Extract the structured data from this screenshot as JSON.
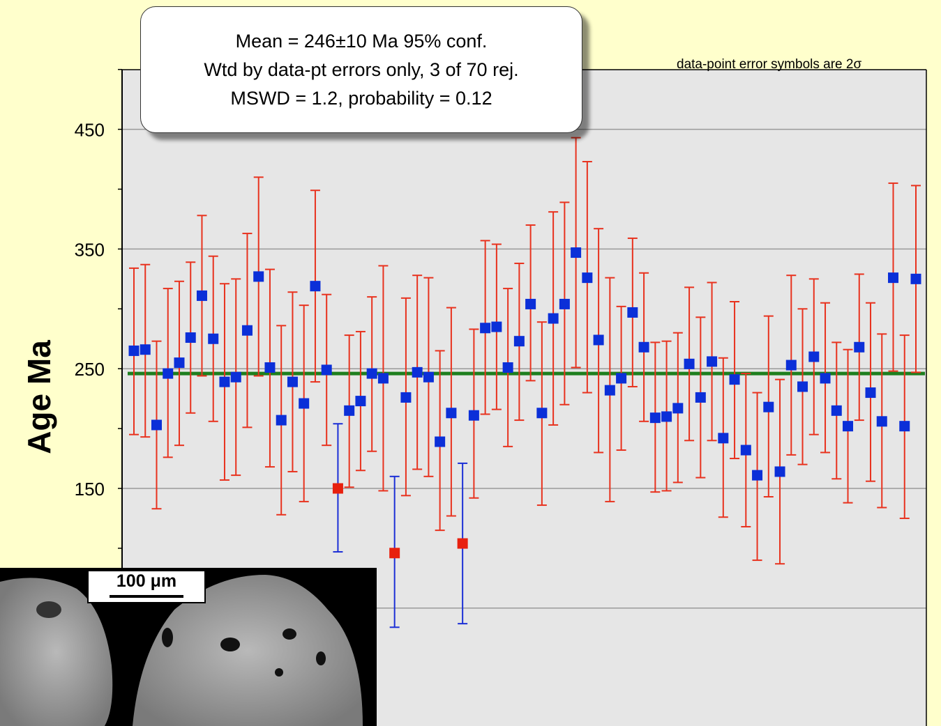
{
  "stats_box": {
    "line1": "Mean = 246±10 Ma  95% conf.",
    "line2": "Wtd by data-pt errors only, 3 of 70 rej.",
    "line3": "MSWD = 1.2, probability = 0.12"
  },
  "note": "data-point error symbols are 2σ",
  "inset": {
    "scale_label": "100 μm"
  },
  "chart_data": {
    "type": "scatter",
    "ylabel": "Age Ma",
    "ylim": [
      50,
      500
    ],
    "yticks": [
      150,
      250,
      350,
      450
    ],
    "grid": true,
    "mean": 246,
    "colors": {
      "accepted_point": "#0b2fd8",
      "accepted_error": "#e8321e",
      "rejected_point": "#e8200e",
      "rejected_error": "#1c2fd6",
      "mean_line": "#1e7f1e",
      "plot_bg": "#e6e6e6"
    },
    "points": [
      {
        "y": 265,
        "lo": 195,
        "hi": 334,
        "rejected": false
      },
      {
        "y": 266,
        "lo": 193,
        "hi": 337,
        "rejected": false
      },
      {
        "y": 203,
        "lo": 133,
        "hi": 273,
        "rejected": false
      },
      {
        "y": 246,
        "lo": 176,
        "hi": 317,
        "rejected": false
      },
      {
        "y": 255,
        "lo": 186,
        "hi": 323,
        "rejected": false
      },
      {
        "y": 276,
        "lo": 213,
        "hi": 339,
        "rejected": false
      },
      {
        "y": 311,
        "lo": 244,
        "hi": 378,
        "rejected": false
      },
      {
        "y": 275,
        "lo": 206,
        "hi": 344,
        "rejected": false
      },
      {
        "y": 239,
        "lo": 157,
        "hi": 321,
        "rejected": false
      },
      {
        "y": 243,
        "lo": 161,
        "hi": 325,
        "rejected": false
      },
      {
        "y": 282,
        "lo": 201,
        "hi": 363,
        "rejected": false
      },
      {
        "y": 327,
        "lo": 244,
        "hi": 410,
        "rejected": false
      },
      {
        "y": 251,
        "lo": 168,
        "hi": 333,
        "rejected": false
      },
      {
        "y": 207,
        "lo": 128,
        "hi": 286,
        "rejected": false
      },
      {
        "y": 239,
        "lo": 164,
        "hi": 314,
        "rejected": false
      },
      {
        "y": 221,
        "lo": 139,
        "hi": 303,
        "rejected": false
      },
      {
        "y": 319,
        "lo": 239,
        "hi": 399,
        "rejected": false
      },
      {
        "y": 249,
        "lo": 186,
        "hi": 312,
        "rejected": false
      },
      {
        "y": 150,
        "lo": 97,
        "hi": 204,
        "rejected": true
      },
      {
        "y": 215,
        "lo": 151,
        "hi": 278,
        "rejected": false
      },
      {
        "y": 223,
        "lo": 165,
        "hi": 281,
        "rejected": false
      },
      {
        "y": 246,
        "lo": 181,
        "hi": 310,
        "rejected": false
      },
      {
        "y": 242,
        "lo": 148,
        "hi": 336,
        "rejected": false
      },
      {
        "y": 96,
        "lo": 34,
        "hi": 160,
        "rejected": true
      },
      {
        "y": 226,
        "lo": 144,
        "hi": 309,
        "rejected": false
      },
      {
        "y": 247,
        "lo": 166,
        "hi": 328,
        "rejected": false
      },
      {
        "y": 243,
        "lo": 160,
        "hi": 326,
        "rejected": false
      },
      {
        "y": 189,
        "lo": 115,
        "hi": 265,
        "rejected": false
      },
      {
        "y": 213,
        "lo": 127,
        "hi": 301,
        "rejected": false
      },
      {
        "y": 104,
        "lo": 37,
        "hi": 171,
        "rejected": true
      },
      {
        "y": 211,
        "lo": 142,
        "hi": 283,
        "rejected": false
      },
      {
        "y": 284,
        "lo": 212,
        "hi": 357,
        "rejected": false
      },
      {
        "y": 285,
        "lo": 216,
        "hi": 354,
        "rejected": false
      },
      {
        "y": 251,
        "lo": 185,
        "hi": 317,
        "rejected": false
      },
      {
        "y": 273,
        "lo": 207,
        "hi": 338,
        "rejected": false
      },
      {
        "y": 304,
        "lo": 240,
        "hi": 370,
        "rejected": false
      },
      {
        "y": 213,
        "lo": 136,
        "hi": 289,
        "rejected": false
      },
      {
        "y": 292,
        "lo": 203,
        "hi": 381,
        "rejected": false
      },
      {
        "y": 304,
        "lo": 220,
        "hi": 389,
        "rejected": false
      },
      {
        "y": 347,
        "lo": 251,
        "hi": 443,
        "rejected": false
      },
      {
        "y": 326,
        "lo": 230,
        "hi": 423,
        "rejected": false
      },
      {
        "y": 274,
        "lo": 180,
        "hi": 367,
        "rejected": false
      },
      {
        "y": 232,
        "lo": 139,
        "hi": 326,
        "rejected": false
      },
      {
        "y": 242,
        "lo": 182,
        "hi": 302,
        "rejected": false
      },
      {
        "y": 297,
        "lo": 235,
        "hi": 359,
        "rejected": false
      },
      {
        "y": 268,
        "lo": 206,
        "hi": 330,
        "rejected": false
      },
      {
        "y": 209,
        "lo": 147,
        "hi": 272,
        "rejected": false
      },
      {
        "y": 210,
        "lo": 148,
        "hi": 273,
        "rejected": false
      },
      {
        "y": 217,
        "lo": 155,
        "hi": 280,
        "rejected": false
      },
      {
        "y": 254,
        "lo": 190,
        "hi": 318,
        "rejected": false
      },
      {
        "y": 226,
        "lo": 159,
        "hi": 293,
        "rejected": false
      },
      {
        "y": 256,
        "lo": 190,
        "hi": 322,
        "rejected": false
      },
      {
        "y": 192,
        "lo": 126,
        "hi": 259,
        "rejected": false
      },
      {
        "y": 241,
        "lo": 175,
        "hi": 306,
        "rejected": false
      },
      {
        "y": 182,
        "lo": 118,
        "hi": 246,
        "rejected": false
      },
      {
        "y": 161,
        "lo": 90,
        "hi": 230,
        "rejected": false
      },
      {
        "y": 218,
        "lo": 143,
        "hi": 294,
        "rejected": false
      },
      {
        "y": 164,
        "lo": 87,
        "hi": 241,
        "rejected": false
      },
      {
        "y": 253,
        "lo": 178,
        "hi": 328,
        "rejected": false
      },
      {
        "y": 235,
        "lo": 170,
        "hi": 300,
        "rejected": false
      },
      {
        "y": 260,
        "lo": 195,
        "hi": 325,
        "rejected": false
      },
      {
        "y": 242,
        "lo": 180,
        "hi": 305,
        "rejected": false
      },
      {
        "y": 215,
        "lo": 158,
        "hi": 272,
        "rejected": false
      },
      {
        "y": 202,
        "lo": 138,
        "hi": 266,
        "rejected": false
      },
      {
        "y": 268,
        "lo": 207,
        "hi": 329,
        "rejected": false
      },
      {
        "y": 230,
        "lo": 156,
        "hi": 305,
        "rejected": false
      },
      {
        "y": 206,
        "lo": 134,
        "hi": 279,
        "rejected": false
      },
      {
        "y": 326,
        "lo": 248,
        "hi": 405,
        "rejected": false
      },
      {
        "y": 202,
        "lo": 125,
        "hi": 278,
        "rejected": false
      },
      {
        "y": 325,
        "lo": 247,
        "hi": 403,
        "rejected": false
      }
    ]
  }
}
